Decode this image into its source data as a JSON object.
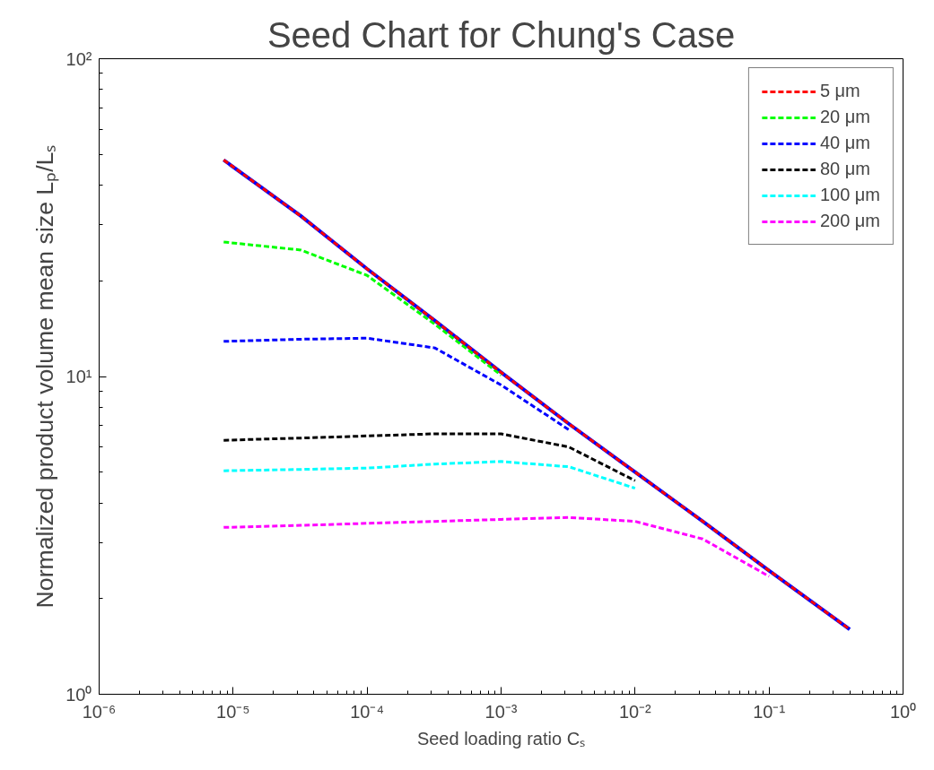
{
  "chart_data": {
    "type": "line",
    "title": "Seed Chart for Chung's Case",
    "xlabel": "Seed loading ratio Cₛ",
    "ylabel": "Normalized product volume mean size Lₚ/Lₛ",
    "log": "xy",
    "grid": false,
    "legend": "top right",
    "marker": "none",
    "xlim": [
      1e-06,
      1
    ],
    "ylim": [
      1,
      100
    ],
    "xticks": [
      {
        "value": 1e-06,
        "label": "10⁻⁶"
      },
      {
        "value": 1e-05,
        "label": "10⁻⁵"
      },
      {
        "value": 0.0001,
        "label": "10⁻⁴"
      },
      {
        "value": 0.001,
        "label": "10⁻³"
      },
      {
        "value": 0.01,
        "label": "10⁻²"
      },
      {
        "value": 0.1,
        "label": "10⁻¹"
      },
      {
        "value": 1,
        "label": "10⁰"
      }
    ],
    "yticks": [
      {
        "value": 1,
        "label": "10⁰"
      },
      {
        "value": 10,
        "label": "10¹"
      },
      {
        "value": 100,
        "label": "10²"
      }
    ],
    "x": [
      8.5e-06,
      3.2e-05,
      0.0001,
      0.00032,
      0.001,
      0.0032,
      0.01,
      0.032,
      0.1,
      0.4
    ],
    "series": [
      {
        "name": "5 μm",
        "color": "#ff0000",
        "line_style": "dashed",
        "values": [
          48,
          32,
          21.8,
          15,
          10.3,
          7.1,
          5.0,
          3.5,
          2.45,
          1.6
        ]
      },
      {
        "name": "20 μm",
        "color": "#00ff00",
        "line_style": "dashed",
        "values": [
          26.5,
          25,
          20.8,
          14.6,
          10.1,
          null,
          null,
          null,
          null,
          null
        ]
      },
      {
        "name": "40 μm",
        "color": "#0000ff",
        "line_style": "dashed",
        "values": [
          12.9,
          13.1,
          13.2,
          12.3,
          9.4,
          6.8,
          null,
          null,
          null,
          null
        ]
      },
      {
        "name": "80 μm",
        "color": "#000000",
        "line_style": "dashed",
        "values": [
          6.3,
          6.4,
          6.5,
          6.6,
          6.6,
          6.0,
          4.7,
          null,
          null,
          null
        ]
      },
      {
        "name": "100 μm",
        "color": "#00ffff",
        "line_style": "dashed",
        "values": [
          5.05,
          5.1,
          5.15,
          5.3,
          5.4,
          5.2,
          4.45,
          null,
          null,
          null
        ]
      },
      {
        "name": "200 μm",
        "color": "#ff00ff",
        "line_style": "dashed",
        "values": [
          3.35,
          3.4,
          3.45,
          3.5,
          3.55,
          3.6,
          3.5,
          3.08,
          2.35,
          null
        ]
      },
      {
        "color": "#0000ff",
        "line_style": "solid",
        "values": [
          48,
          32,
          21.8,
          15,
          10.3,
          7.1,
          5.0,
          3.5,
          2.45,
          1.6
        ]
      }
    ]
  }
}
